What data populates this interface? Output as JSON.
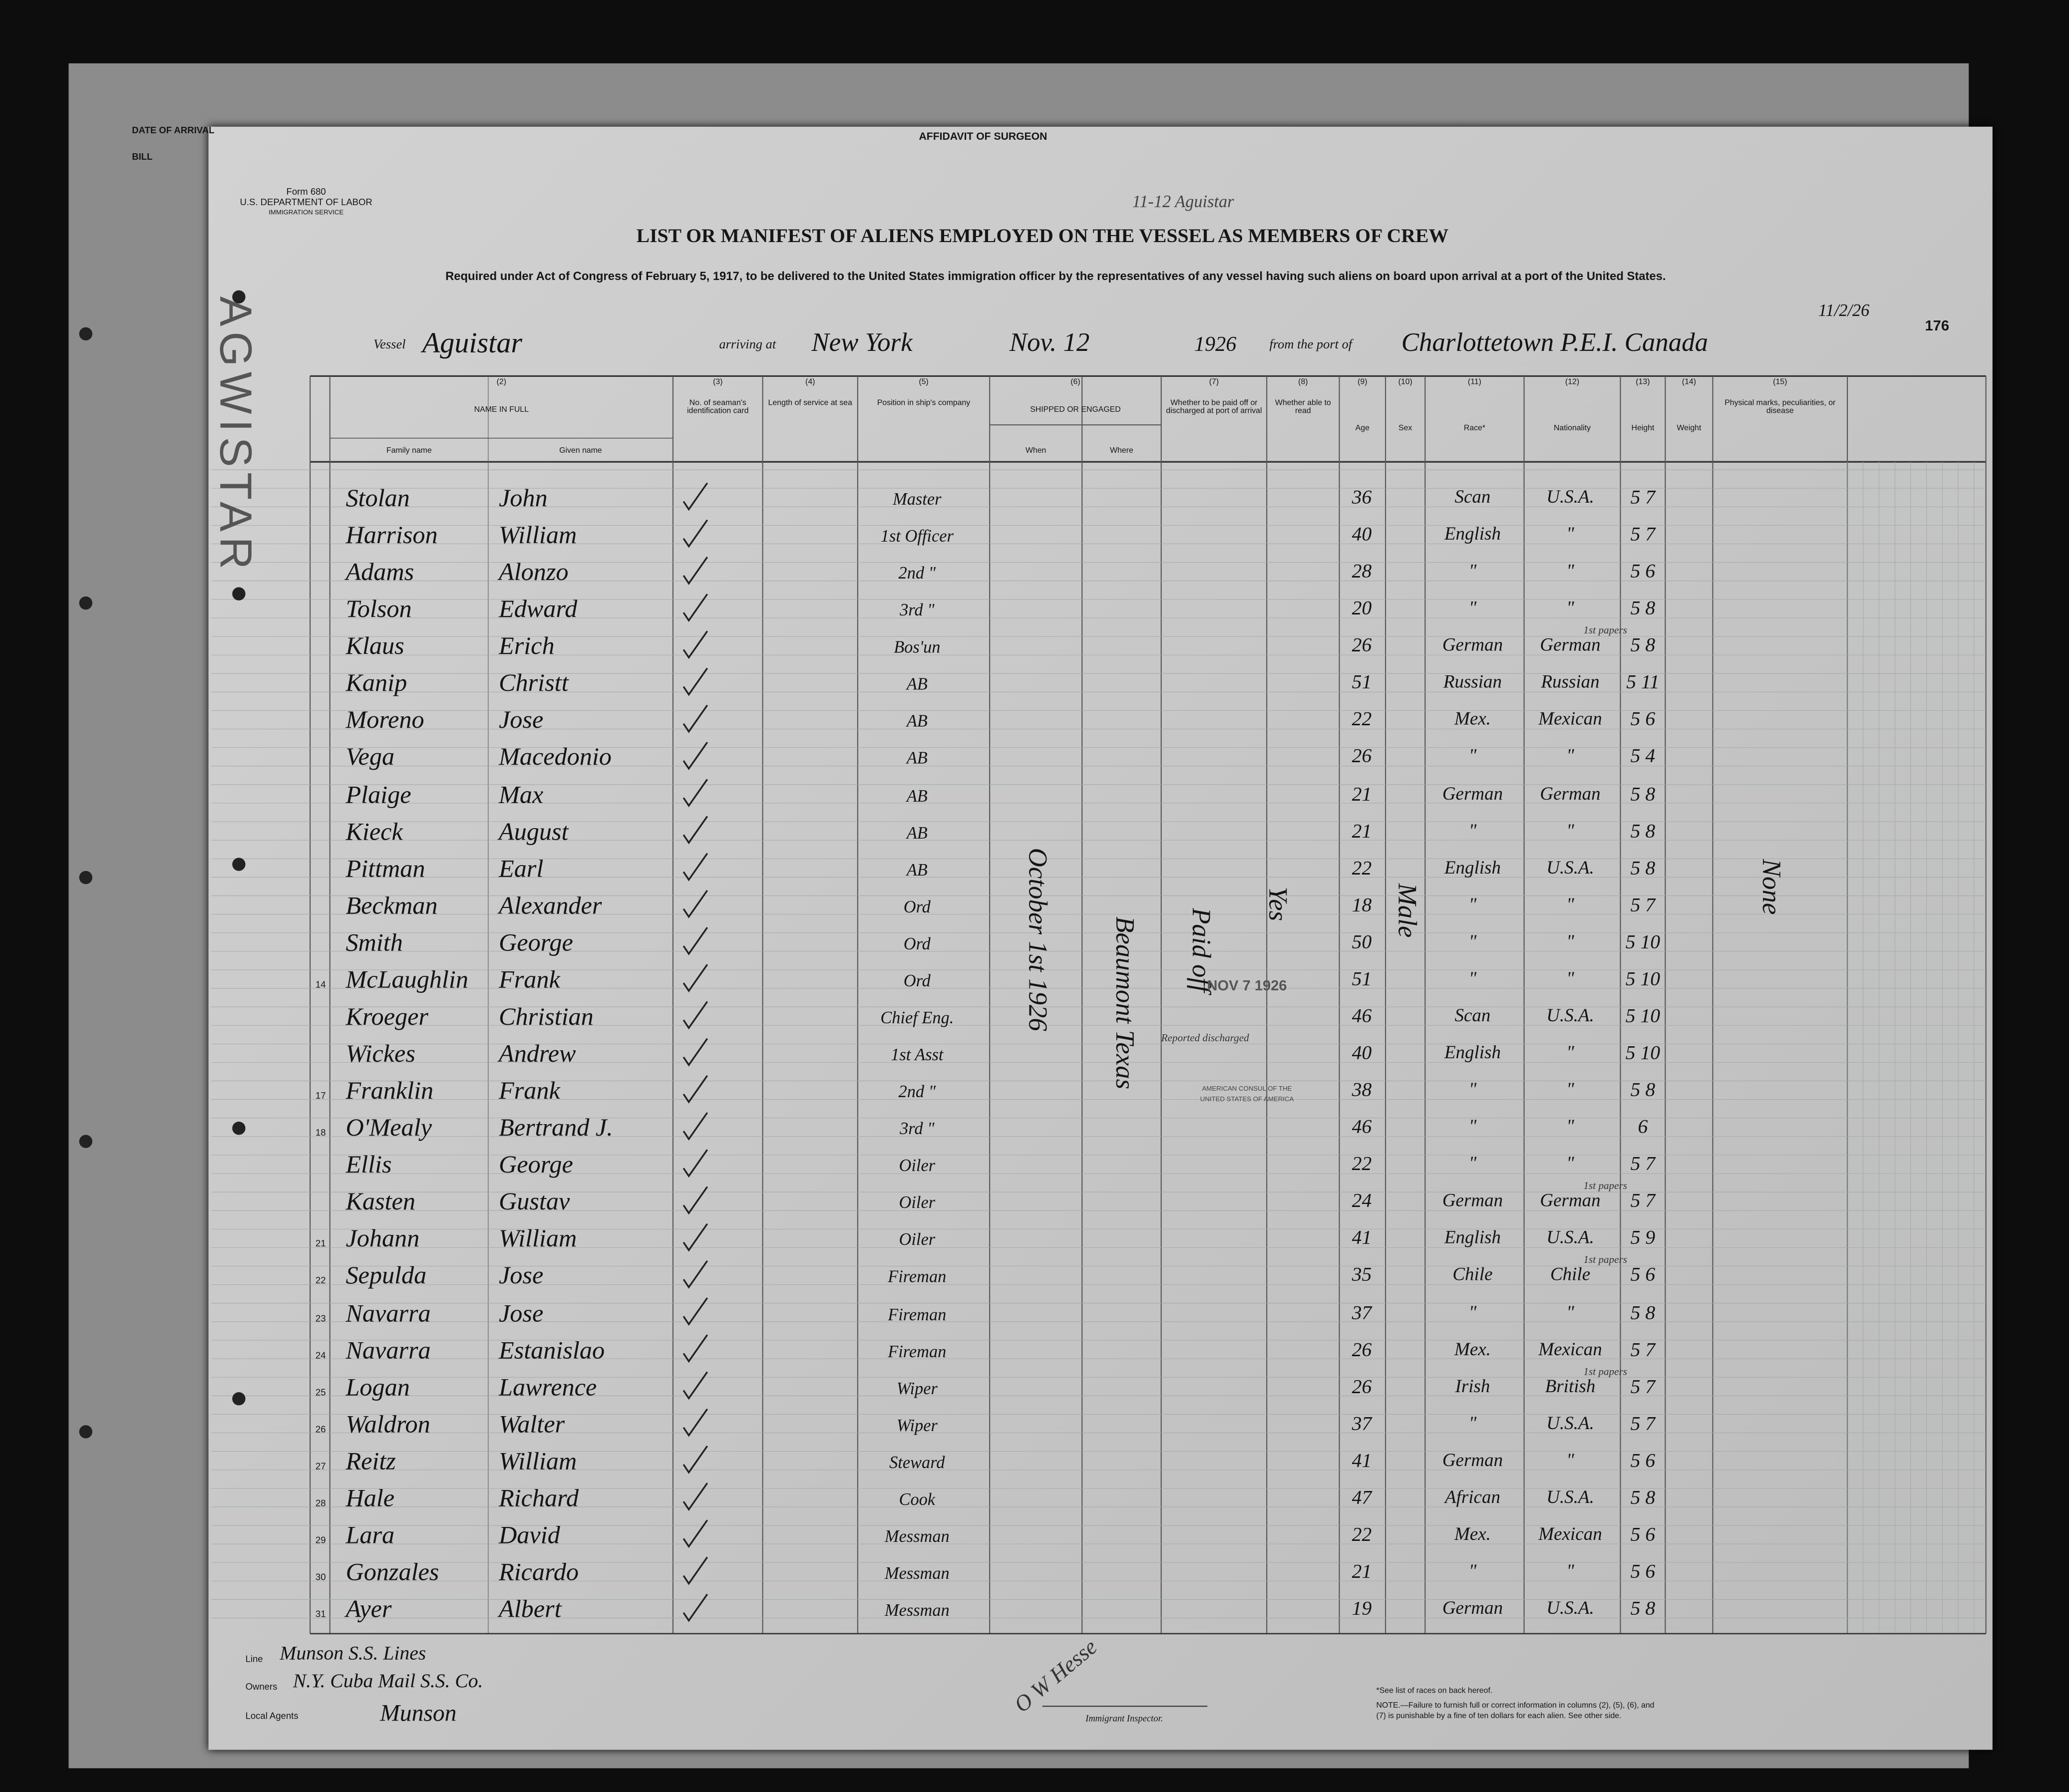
{
  "back_sheet": {
    "date_of_arrival": "DATE OF ARRIVAL",
    "bill": "BILL",
    "affidavit": "AFFIDAVIT OF SURGEON",
    "vessel_stamp": "AGWISTAR"
  },
  "header": {
    "form": "Form 680",
    "department": "U.S. DEPARTMENT OF LABOR",
    "service": "IMMIGRATION SERVICE",
    "annotation": "11-12 Aguistar",
    "title": "LIST OR MANIFEST OF ALIENS EMPLOYED ON THE VESSEL AS MEMBERS OF CREW",
    "requirement": "Required under Act of Congress of February 5, 1917, to be delivered to the United States immigration officer by the representatives of any vessel having such aliens on board upon arrival at a port of the United States.",
    "page_number": "176"
  },
  "vessel": {
    "vessel_label": "Vessel",
    "vessel": "Aguistar",
    "arriving_label": "arriving at",
    "port": "New York",
    "date": "Nov. 12",
    "year": "1926",
    "from_label": "from the port of",
    "origin": "Charlottetown P.E.I. Canada",
    "departure_date": "11/2/26"
  },
  "table": {
    "columns": [
      {
        "number": "(2)",
        "label": "NAME IN FULL",
        "subs": [
          "Family name",
          "Given name"
        ]
      },
      {
        "number": "(3)",
        "label": "No. of seaman's identification card"
      },
      {
        "number": "(4)",
        "label": "Length of service at sea"
      },
      {
        "number": "(5)",
        "label": "Position in ship's company"
      },
      {
        "number": "(6)",
        "label": "SHIPPED OR ENGAGED",
        "subs": [
          "When",
          "Where"
        ]
      },
      {
        "number": "(7)",
        "label": "Whether to be paid off or discharged at port of arrival"
      },
      {
        "number": "(8)",
        "label": "Whether able to read"
      },
      {
        "number": "(9)",
        "label": "Age"
      },
      {
        "number": "(10)",
        "label": "Sex"
      },
      {
        "number": "(11)",
        "label": "Race*"
      },
      {
        "number": "(12)",
        "label": "Nationality"
      },
      {
        "number": "(13)",
        "label": "Height"
      },
      {
        "number": "(14)",
        "label": "Weight"
      },
      {
        "number": "(15)",
        "label": "Physical marks, peculiarities, or disease"
      }
    ],
    "rows": [
      {
        "family": "Stolan",
        "given": "John",
        "position": "Master",
        "age": 36,
        "race": "Scan",
        "nationality": "U.S.A.",
        "height": "5 7"
      },
      {
        "family": "Harrison",
        "given": "William",
        "position": "1st Officer",
        "age": 40,
        "race": "English",
        "nationality": "\"",
        "height": "5 7"
      },
      {
        "family": "Adams",
        "given": "Alonzo",
        "position": "2nd \"",
        "age": 28,
        "race": "\"",
        "nationality": "\"",
        "height": "5 6"
      },
      {
        "family": "Tolson",
        "given": "Edward",
        "position": "3rd \"",
        "age": 20,
        "race": "\"",
        "nationality": "\"",
        "height": "5 8"
      },
      {
        "family": "Klaus",
        "given": "Erich",
        "position": "Bos'un",
        "age": 26,
        "race": "German",
        "nationality": "German",
        "height": "5 8",
        "note": "1st papers"
      },
      {
        "family": "Kanip",
        "given": "Christt",
        "position": "AB",
        "age": 51,
        "race": "Russian",
        "nationality": "Russian",
        "height": "5 11"
      },
      {
        "family": "Moreno",
        "given": "Jose",
        "position": "AB",
        "age": 22,
        "race": "Mex.",
        "nationality": "Mexican",
        "height": "5 6"
      },
      {
        "family": "Vega",
        "given": "Macedonio",
        "position": "AB",
        "age": 26,
        "race": "\"",
        "nationality": "\"",
        "height": "5 4"
      },
      {
        "family": "Plaige",
        "given": "Max",
        "position": "AB",
        "age": 21,
        "race": "German",
        "nationality": "German",
        "height": "5 8"
      },
      {
        "family": "Kieck",
        "given": "August",
        "position": "AB",
        "age": 21,
        "race": "\"",
        "nationality": "\"",
        "height": "5 8"
      },
      {
        "family": "Pittman",
        "given": "Earl",
        "position": "AB",
        "age": 22,
        "race": "English",
        "nationality": "U.S.A.",
        "height": "5 8"
      },
      {
        "family": "Beckman",
        "given": "Alexander",
        "position": "Ord",
        "age": 18,
        "race": "\"",
        "nationality": "\"",
        "height": "5 7"
      },
      {
        "family": "Smith",
        "given": "George",
        "position": "Ord",
        "age": 50,
        "race": "\"",
        "nationality": "\"",
        "height": "5 10"
      },
      {
        "no": "14",
        "family": "McLaughlin",
        "given": "Frank",
        "position": "Ord",
        "age": 51,
        "race": "\"",
        "nationality": "\"",
        "height": "5 10"
      },
      {
        "family": "Kroeger",
        "given": "Christian",
        "position": "Chief Eng.",
        "age": 46,
        "race": "Scan",
        "nationality": "U.S.A.",
        "height": "5 10"
      },
      {
        "family": "Wickes",
        "given": "Andrew",
        "position": "1st Asst",
        "age": 40,
        "race": "English",
        "nationality": "\"",
        "height": "5 10",
        "note": "Reported discharged"
      },
      {
        "no": "17",
        "family": "Franklin",
        "given": "Frank",
        "position": "2nd \"",
        "age": 38,
        "race": "\"",
        "nationality": "\"",
        "height": "5 8"
      },
      {
        "no": "18",
        "family": "O'Mealy",
        "given": "Bertrand J.",
        "position": "3rd \"",
        "age": 46,
        "race": "\"",
        "nationality": "\"",
        "height": "6"
      },
      {
        "family": "Ellis",
        "given": "George",
        "position": "Oiler",
        "age": 22,
        "race": "\"",
        "nationality": "\"",
        "height": "5 7"
      },
      {
        "family": "Kasten",
        "given": "Gustav",
        "position": "Oiler",
        "age": 24,
        "race": "German",
        "nationality": "German",
        "height": "5 7",
        "note": "1st papers"
      },
      {
        "no": "21",
        "family": "Johann",
        "given": "William",
        "position": "Oiler",
        "age": 41,
        "race": "English",
        "nationality": "U.S.A.",
        "height": "5 9"
      },
      {
        "no": "22",
        "family": "Sepulda",
        "given": "Jose",
        "position": "Fireman",
        "age": 35,
        "race": "Chile",
        "nationality": "Chile",
        "height": "5 6",
        "note": "1st papers"
      },
      {
        "no": "23",
        "family": "Navarra",
        "given": "Jose",
        "position": "Fireman",
        "age": 37,
        "race": "\"",
        "nationality": "\"",
        "height": "5 8"
      },
      {
        "no": "24",
        "family": "Navarra",
        "given": "Estanislao",
        "position": "Fireman",
        "age": 26,
        "race": "Mex.",
        "nationality": "Mexican",
        "height": "5 7"
      },
      {
        "no": "25",
        "family": "Logan",
        "given": "Lawrence",
        "position": "Wiper",
        "age": 26,
        "race": "Irish",
        "nationality": "British",
        "height": "5 7",
        "note": "1st papers"
      },
      {
        "no": "26",
        "family": "Waldron",
        "given": "Walter",
        "position": "Wiper",
        "age": 37,
        "race": "\"",
        "nationality": "U.S.A.",
        "height": "5 7"
      },
      {
        "no": "27",
        "family": "Reitz",
        "given": "William",
        "position": "Steward",
        "age": 41,
        "race": "German",
        "nationality": "\"",
        "height": "5 6"
      },
      {
        "no": "28",
        "family": "Hale",
        "given": "Richard",
        "position": "Cook",
        "age": 47,
        "race": "African",
        "nationality": "U.S.A.",
        "height": "5 8"
      },
      {
        "no": "29",
        "family": "Lara",
        "given": "David",
        "position": "Messman",
        "age": 22,
        "race": "Mex.",
        "nationality": "Mexican",
        "height": "5 6"
      },
      {
        "no": "30",
        "family": "Gonzales",
        "given": "Ricardo",
        "position": "Messman",
        "age": 21,
        "race": "\"",
        "nationality": "\"",
        "height": "5 6"
      },
      {
        "no": "31",
        "family": "Ayer",
        "given": "Albert",
        "position": "Messman",
        "age": 19,
        "race": "German",
        "nationality": "U.S.A.",
        "height": "5 8"
      }
    ],
    "spans": {
      "shipped_when": "October 1st 1926",
      "shipped_where": "Beaumont Texas",
      "discharge": "Paid off",
      "read": "Yes",
      "sex": "Male",
      "physical": "None"
    }
  },
  "stamp": {
    "date": "NOV 7 1926",
    "line1": "AMERICAN CONSUL OF THE",
    "line2": "UNITED STATES OF AMERICA"
  },
  "footer": {
    "line_label": "Line",
    "line": "Munson S.S. Lines",
    "owners_label": "Owners",
    "owners": "N.Y. Cuba Mail S.S. Co.",
    "agents_label": "Local Agents",
    "agents": "Munson",
    "signature": "O W Hesse",
    "inspector_label": "Immigrant Inspector.",
    "races_note": "*See list of races on back hereof.",
    "fine_note": "NOTE.—Failure to furnish full or correct information in columns (2), (5), (6), and (7) is punishable by a fine of ten dollars for each alien. See other side."
  }
}
